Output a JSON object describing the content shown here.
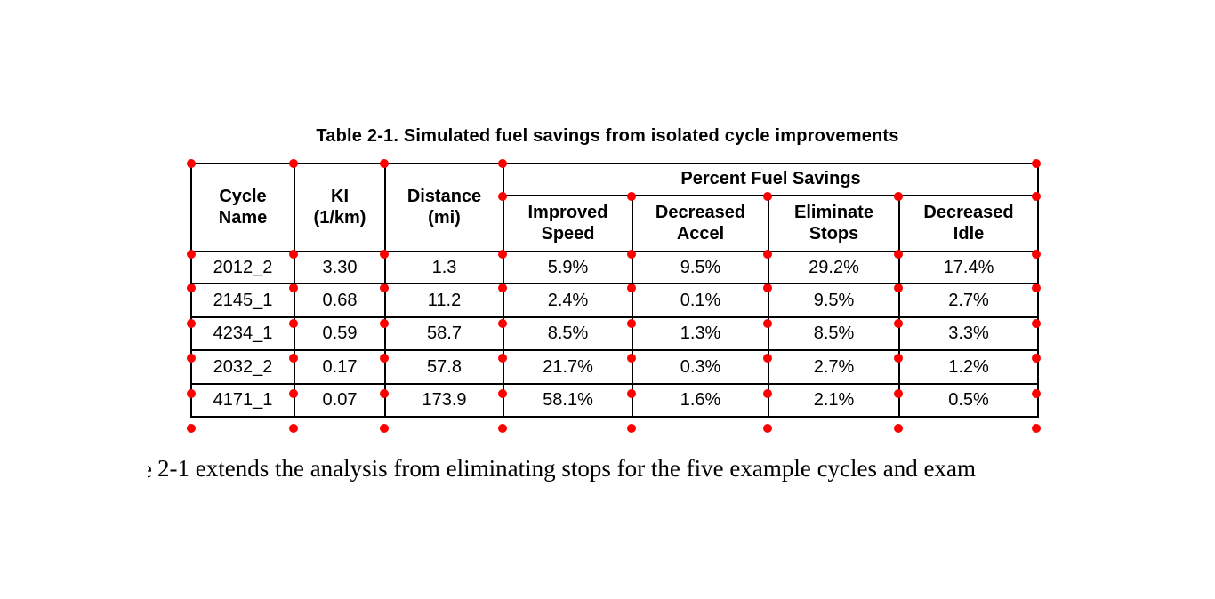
{
  "caption": "Table 2-1. Simulated fuel savings from isolated cycle improvements",
  "table": {
    "span_header": "Percent Fuel Savings",
    "col_headers": [
      "Cycle\nName",
      "KI\n(1/km)",
      "Distance\n(mi)",
      "Improved\nSpeed",
      "Decreased\nAccel",
      "Eliminate\nStops",
      "Decreased\nIdle"
    ],
    "rows": [
      [
        "2012_2",
        "3.30",
        "1.3",
        "5.9%",
        "9.5%",
        "29.2%",
        "17.4%"
      ],
      [
        "2145_1",
        "0.68",
        "11.2",
        "2.4%",
        "0.1%",
        "9.5%",
        "2.7%"
      ],
      [
        "4234_1",
        "0.59",
        "58.7",
        "8.5%",
        "1.3%",
        "8.5%",
        "3.3%"
      ],
      [
        "2032_2",
        "0.17",
        "57.8",
        "21.7%",
        "0.3%",
        "2.7%",
        "1.2%"
      ],
      [
        "4171_1",
        "0.07",
        "173.9",
        "58.1%",
        "1.6%",
        "2.1%",
        "0.5%"
      ]
    ]
  },
  "body_text": {
    "fragment": "e",
    "line": "2-1 extends the analysis from eliminating stops for the five example cycles and exam"
  },
  "annotation": {
    "dot_color": "#ff0000"
  }
}
